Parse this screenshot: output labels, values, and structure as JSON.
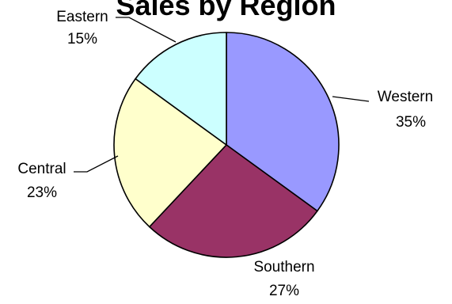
{
  "chart_data": {
    "type": "pie",
    "title": "Sales by Region",
    "slices": [
      {
        "label": "Western",
        "value": 35,
        "value_label": "35%",
        "color": "#9999ff"
      },
      {
        "label": "Southern",
        "value": 27,
        "value_label": "27%",
        "color": "#993366"
      },
      {
        "label": "Central",
        "value": 23,
        "value_label": "23%",
        "color": "#ffffcc"
      },
      {
        "label": "Eastern",
        "value": 15,
        "value_label": "15%",
        "color": "#ccffff"
      }
    ],
    "start_angle": "12 o'clock",
    "direction": "clockwise",
    "outline_color": "#000000",
    "legend": "none",
    "data_labels": "outside with leader lines"
  }
}
